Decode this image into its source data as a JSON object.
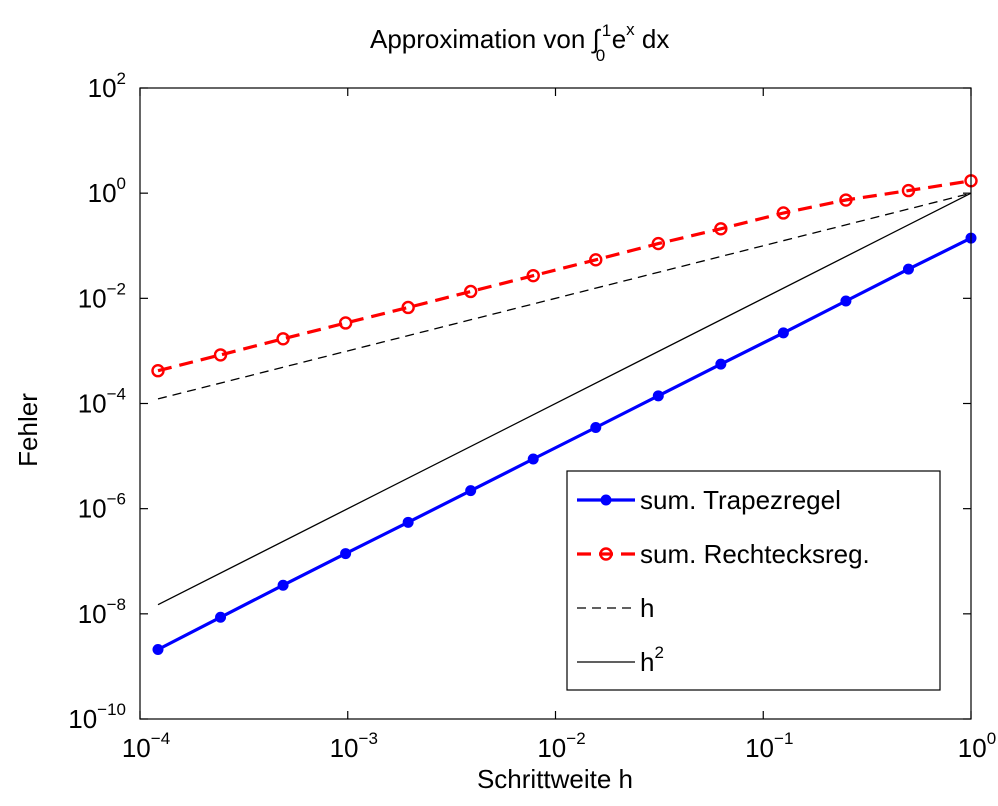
{
  "chart_data": {
    "type": "line",
    "title": "Approximation von ∫",
    "title_integral_upper": "1",
    "title_integral_lower": "0",
    "title_suffix_base": " e",
    "title_suffix_sup": "x",
    "title_suffix_end": " dx",
    "xlabel": "Schrittweite h",
    "ylabel": "Fehler",
    "x_scale": "log",
    "y_scale": "log",
    "xlim": [
      0.0001,
      1
    ],
    "ylim": [
      1e-10,
      100
    ],
    "x_tick_base": "10",
    "x_ticks": [
      {
        "value": 0.0001,
        "exp": "−4"
      },
      {
        "value": 0.001,
        "exp": "−3"
      },
      {
        "value": 0.01,
        "exp": "−2"
      },
      {
        "value": 0.1,
        "exp": "−1"
      },
      {
        "value": 1,
        "exp": "0"
      }
    ],
    "y_tick_base": "10",
    "y_ticks": [
      {
        "value": 1e-10,
        "exp": "−10"
      },
      {
        "value": 1e-08,
        "exp": "−8"
      },
      {
        "value": 1e-06,
        "exp": "−6"
      },
      {
        "value": 0.0001,
        "exp": "−4"
      },
      {
        "value": 0.01,
        "exp": "−2"
      },
      {
        "value": 1,
        "exp": "0"
      },
      {
        "value": 100,
        "exp": "2"
      }
    ],
    "grid": false,
    "legend_position": "bottom-right",
    "x": [
      0.00012207,
      0.00024414,
      0.00048828,
      0.00097656,
      0.0019531,
      0.0039063,
      0.0078125,
      0.015625,
      0.03125,
      0.0625,
      0.125,
      0.25,
      0.5,
      1
    ],
    "series": [
      {
        "name": "sum. Trapezregel",
        "color": "#0000ff",
        "line_style": "solid",
        "marker": "filled-circle",
        "values": [
          2.1e-09,
          8.6e-09,
          3.5e-08,
          1.4e-07,
          5.5e-07,
          2.2e-06,
          8.8e-06,
          3.5e-05,
          0.00014,
          0.00056,
          0.0022,
          0.0089,
          0.036,
          0.14
        ]
      },
      {
        "name": "sum. Rechtecksreg.",
        "color": "#ff0000",
        "line_style": "dashed",
        "marker": "open-circle",
        "values": [
          0.00042,
          0.00084,
          0.0017,
          0.0034,
          0.0067,
          0.0135,
          0.027,
          0.054,
          0.11,
          0.21,
          0.42,
          0.74,
          1.12,
          1.72
        ]
      },
      {
        "name": "h",
        "color": "#000000",
        "line_style": "dashed",
        "marker": "none",
        "x": [
          0.00012207,
          1
        ],
        "values": [
          0.00012207,
          1
        ]
      },
      {
        "name": "h",
        "name_sup": "2",
        "color": "#000000",
        "line_style": "solid",
        "marker": "none",
        "x": [
          0.00012207,
          1
        ],
        "values": [
          1.49e-08,
          1
        ]
      }
    ]
  }
}
